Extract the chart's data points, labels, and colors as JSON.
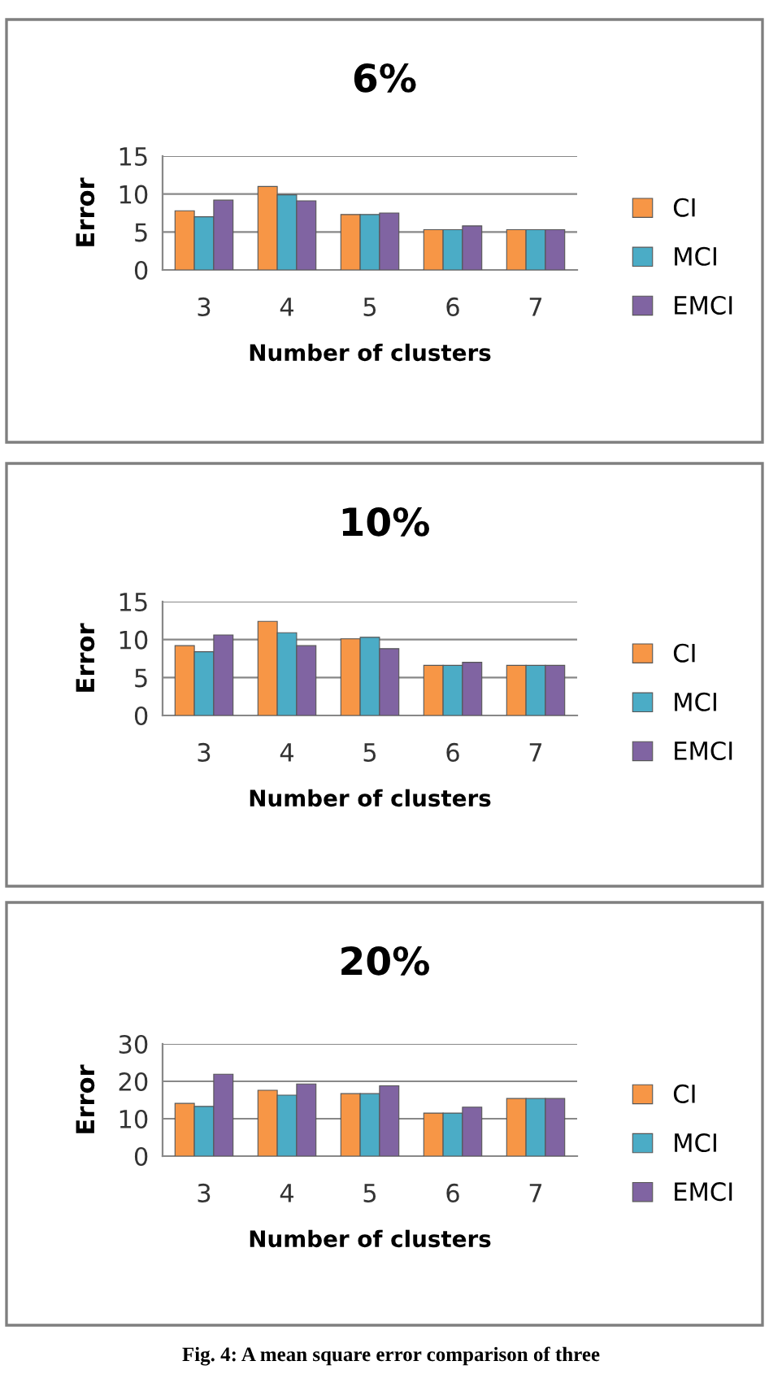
{
  "chart_data": [
    {
      "type": "bar",
      "title": "6%",
      "xlabel": "Number of clusters",
      "ylabel": "Error",
      "categories": [
        "3",
        "4",
        "5",
        "6",
        "7"
      ],
      "series": [
        {
          "name": "CI",
          "color": "#f79646",
          "values": [
            7.8,
            11.0,
            7.3,
            5.3,
            5.3
          ]
        },
        {
          "name": "MCI",
          "color": "#4bacc6",
          "values": [
            7.0,
            9.9,
            7.3,
            5.3,
            5.3
          ]
        },
        {
          "name": "EMCI",
          "color": "#8064a2",
          "values": [
            9.2,
            9.1,
            7.5,
            5.8,
            5.3
          ]
        }
      ],
      "ylim": [
        0,
        15
      ],
      "yticks": [
        0,
        5,
        10,
        15
      ],
      "grid": "y",
      "legend": "right"
    },
    {
      "type": "bar",
      "title": "10%",
      "xlabel": "Number of clusters",
      "ylabel": "Error",
      "categories": [
        "3",
        "4",
        "5",
        "6",
        "7"
      ],
      "series": [
        {
          "name": "CI",
          "color": "#f79646",
          "values": [
            9.2,
            12.4,
            10.1,
            6.6,
            6.6
          ]
        },
        {
          "name": "MCI",
          "color": "#4bacc6",
          "values": [
            8.4,
            10.9,
            10.3,
            6.6,
            6.6
          ]
        },
        {
          "name": "EMCI",
          "color": "#8064a2",
          "values": [
            10.6,
            9.2,
            8.8,
            7.0,
            6.6
          ]
        }
      ],
      "ylim": [
        0,
        15
      ],
      "yticks": [
        0,
        5,
        10,
        15
      ],
      "grid": "y",
      "legend": "right"
    },
    {
      "type": "bar",
      "title": "20%",
      "xlabel": "Number of clusters",
      "ylabel": "Error",
      "categories": [
        "3",
        "4",
        "5",
        "6",
        "7"
      ],
      "series": [
        {
          "name": "CI",
          "color": "#f79646",
          "values": [
            14.1,
            17.6,
            16.7,
            11.5,
            15.4
          ]
        },
        {
          "name": "MCI",
          "color": "#4bacc6",
          "values": [
            13.3,
            16.3,
            16.7,
            11.5,
            15.4
          ]
        },
        {
          "name": "EMCI",
          "color": "#8064a2",
          "values": [
            21.9,
            19.3,
            18.8,
            13.1,
            15.4
          ]
        }
      ],
      "ylim": [
        0,
        30
      ],
      "yticks": [
        0,
        10,
        20,
        30
      ],
      "grid": "y",
      "legend": "right",
      "annotations": [
        "Fig. 4: A mean square error comparison of three"
      ]
    }
  ]
}
